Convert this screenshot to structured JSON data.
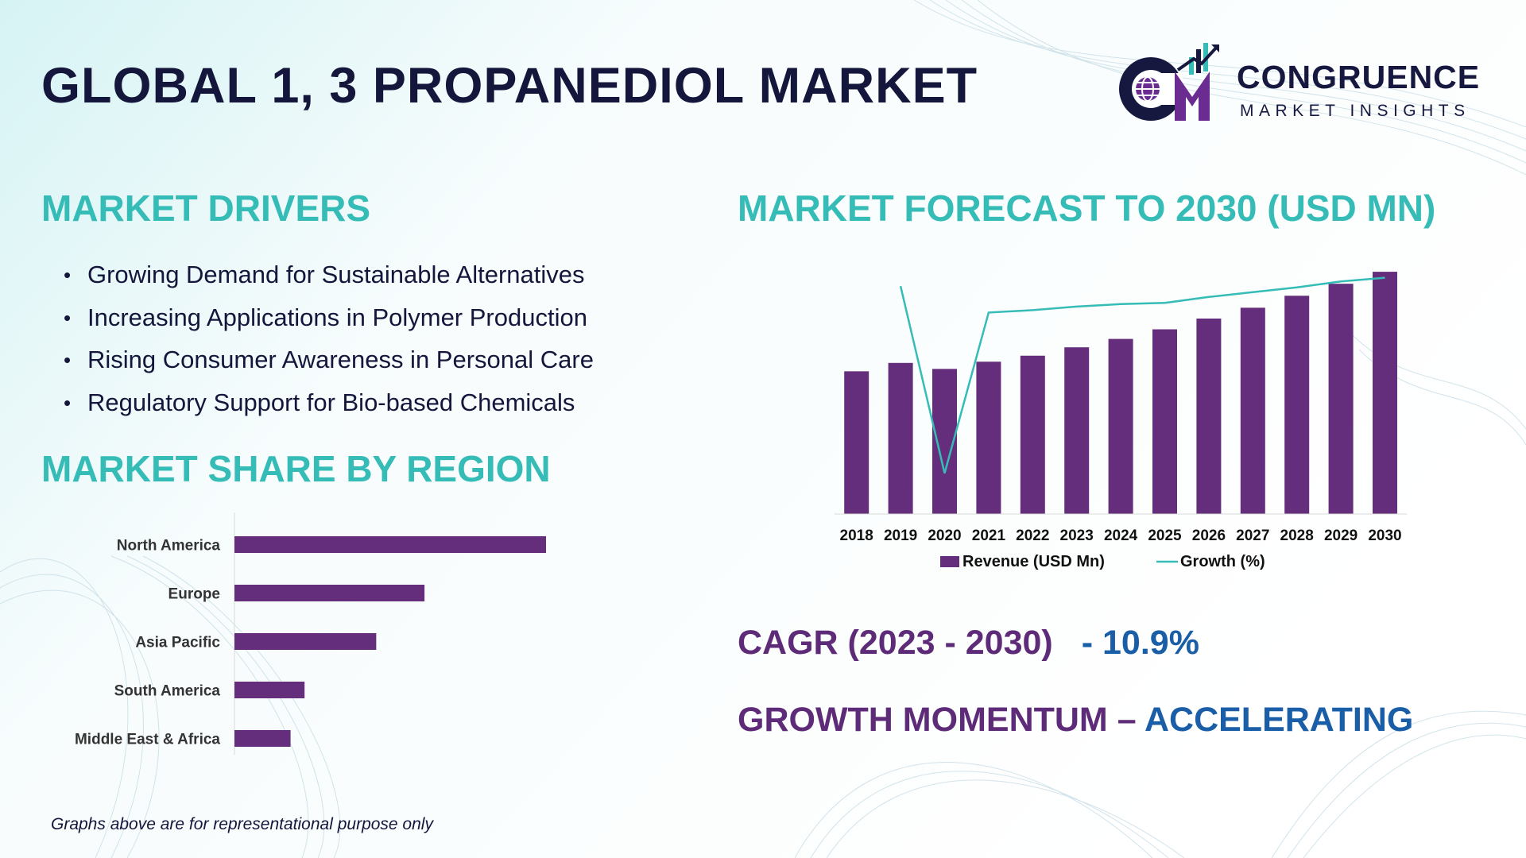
{
  "title": "GLOBAL 1, 3 PROPANEDIOL MARKET",
  "logo": {
    "name": "CONGRUENCE",
    "subtitle": "MARKET INSIGHTS",
    "mark": "CM",
    "colors": {
      "navy": "#17183f",
      "purple": "#6a2c91",
      "teal": "#35bcb7"
    }
  },
  "drivers": {
    "title": "MARKET DRIVERS",
    "items": [
      "Growing Demand for Sustainable Alternatives",
      "Increasing Applications in Polymer Production",
      "Rising Consumer Awareness in Personal Care",
      "Regulatory Support for Bio-based Chemicals"
    ]
  },
  "forecast": {
    "title": "MARKET FORECAST TO 2030 (USD MN)"
  },
  "region": {
    "title": "MARKET SHARE BY REGION"
  },
  "cagr": {
    "label": "CAGR (2023 - 2030)",
    "value": "- 10.9%"
  },
  "momentum": {
    "label": "GROWTH MOMENTUM – ",
    "value": "ACCELERATING"
  },
  "footnote": "Graphs above are for representational purpose only",
  "colors": {
    "bar": "#652e7c",
    "line": "#35bcb7",
    "heading": "#35bcb7",
    "accent_purple": "#5e2b79",
    "accent_blue": "#1b5ea8"
  },
  "chart_data": [
    {
      "type": "bar",
      "orientation": "horizontal",
      "categories": [
        "North America",
        "Europe",
        "Asia Pacific",
        "South America",
        "Middle East & Africa"
      ],
      "values": [
        100,
        61,
        45.5,
        22.5,
        18
      ],
      "grid": false,
      "legend": "none"
    },
    {
      "type": "bar",
      "categories": [
        "2018",
        "2019",
        "2020",
        "2021",
        "2022",
        "2023",
        "2024",
        "2025",
        "2026",
        "2027",
        "2028",
        "2029",
        "2030"
      ],
      "series": [
        {
          "name": "Revenue (USD Mn)",
          "type": "bar",
          "values": [
            59.5,
            63,
            60.5,
            63.5,
            66,
            69.5,
            73,
            77,
            81.5,
            86,
            91,
            96,
            101
          ]
        },
        {
          "name": "Growth (%)",
          "type": "line",
          "values": [
            95,
            95,
            17,
            84,
            85,
            86.5,
            87.5,
            88,
            90.5,
            92.5,
            94.5,
            97,
            98.5
          ]
        }
      ],
      "legend": "bottom",
      "grid": false
    }
  ]
}
